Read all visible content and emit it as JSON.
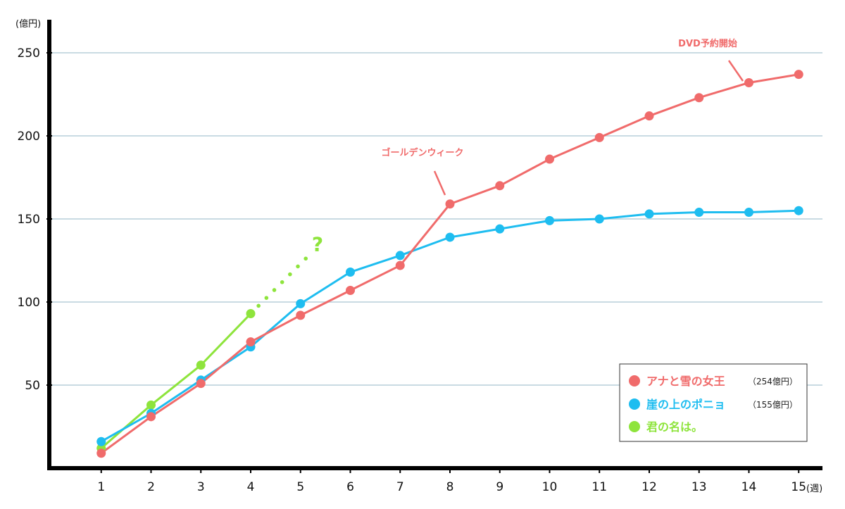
{
  "chart_data": {
    "type": "line",
    "title": "",
    "xlabel": "(週)",
    "ylabel": "(億円)",
    "x": [
      1,
      2,
      3,
      4,
      5,
      6,
      7,
      8,
      9,
      10,
      11,
      12,
      13,
      14,
      15
    ],
    "xlim": [
      0,
      15.4
    ],
    "ylim": [
      0,
      250
    ],
    "yticks": [
      50,
      100,
      150,
      200,
      250
    ],
    "grid": true,
    "legend_position": "bottom-right",
    "series": [
      {
        "name": "アナと雪の女王",
        "note": "（254億円）",
        "color": "#f06b6b",
        "x": [
          1,
          2,
          3,
          4,
          5,
          6,
          7,
          8,
          9,
          10,
          11,
          12,
          13,
          14,
          15
        ],
        "values": [
          9,
          31,
          51,
          76,
          92,
          107,
          122,
          159,
          170,
          186,
          199,
          212,
          223,
          232,
          237
        ]
      },
      {
        "name": "崖の上のポニョ",
        "note": "（155億円）",
        "color": "#1ebdf0",
        "x": [
          1,
          2,
          3,
          4,
          5,
          6,
          7,
          8,
          9,
          10,
          11,
          12,
          13,
          14,
          15
        ],
        "values": [
          16,
          33,
          53,
          73,
          99,
          118,
          128,
          139,
          144,
          149,
          150,
          153,
          154,
          154,
          155
        ]
      },
      {
        "name": "君の名は。",
        "note": "",
        "color": "#8ee43c",
        "x": [
          1,
          2,
          3,
          4
        ],
        "values": [
          12,
          38,
          62,
          93
        ],
        "projection": {
          "x": [
            4,
            5.2
          ],
          "values": [
            93,
            129
          ],
          "label": "?"
        }
      }
    ],
    "annotations": [
      {
        "text": "ゴールデンウィーク",
        "series": 0,
        "x": 8
      },
      {
        "text": "DVD予約開始",
        "series": 0,
        "x": 14
      }
    ]
  }
}
